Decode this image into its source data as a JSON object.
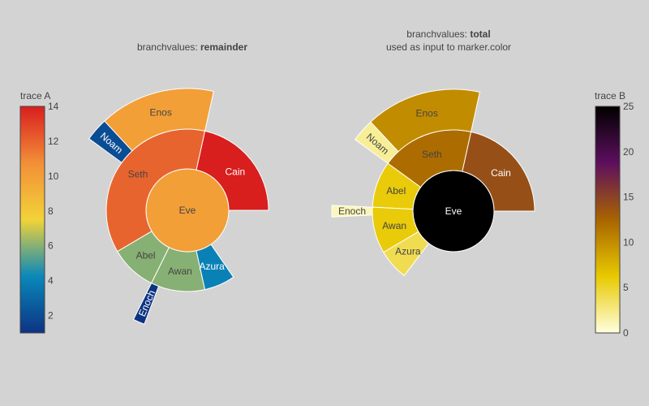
{
  "chart_data": [
    {
      "type": "sunburst",
      "trace_name": "trace A",
      "title_prefix": "branchvalues: ",
      "title_bold": "remainder",
      "subtitle": "",
      "branchvalues": "remainder",
      "colorscale": "Portland",
      "colorbar": {
        "title": "trace A",
        "ticks": [
          2,
          4,
          6,
          8,
          10,
          12,
          14
        ],
        "range": [
          1,
          14
        ],
        "position": "left"
      },
      "nodes": [
        {
          "label": "Eve",
          "parent": "",
          "value": 10,
          "color_value": 10
        },
        {
          "label": "Cain",
          "parent": "Eve",
          "value": 14,
          "color_value": 14
        },
        {
          "label": "Seth",
          "parent": "Eve",
          "value": 12,
          "color_value": 12
        },
        {
          "label": "Enos",
          "parent": "Seth",
          "value": 10,
          "color_value": 10
        },
        {
          "label": "Noam",
          "parent": "Seth",
          "value": 2,
          "color_value": 2
        },
        {
          "label": "Abel",
          "parent": "Eve",
          "value": 6,
          "color_value": 6
        },
        {
          "label": "Awan",
          "parent": "Eve",
          "value": 6,
          "color_value": 6
        },
        {
          "label": "Enoch",
          "parent": "Awan",
          "value": 1,
          "color_value": 1
        },
        {
          "label": "Azura",
          "parent": "Eve",
          "value": 4,
          "color_value": 4
        }
      ]
    },
    {
      "type": "sunburst",
      "trace_name": "trace B",
      "title_prefix": "branchvalues: ",
      "title_bold": "total",
      "subtitle": "used as input to marker.color",
      "branchvalues": "total",
      "colorscale": "Hot (reversed)",
      "colorbar": {
        "title": "trace B",
        "ticks": [
          0,
          5,
          10,
          15,
          20,
          25
        ],
        "range": [
          0,
          25
        ],
        "position": "right"
      },
      "nodes": [
        {
          "label": "Eve",
          "parent": "",
          "value": 65,
          "color_value": 65
        },
        {
          "label": "Cain",
          "parent": "Eve",
          "value": 14,
          "color_value": 14
        },
        {
          "label": "Seth",
          "parent": "Eve",
          "value": 12,
          "color_value": 12
        },
        {
          "label": "Enos",
          "parent": "Seth",
          "value": 10,
          "color_value": 10
        },
        {
          "label": "Noam",
          "parent": "Seth",
          "value": 2,
          "color_value": 2
        },
        {
          "label": "Abel",
          "parent": "Eve",
          "value": 6,
          "color_value": 6
        },
        {
          "label": "Awan",
          "parent": "Eve",
          "value": 6,
          "color_value": 6
        },
        {
          "label": "Enoch",
          "parent": "Awan",
          "value": 1,
          "color_value": 1
        },
        {
          "label": "Azura",
          "parent": "Eve",
          "value": 4,
          "color_value": 4
        }
      ]
    }
  ],
  "colors": {
    "background": "#d3d3d3",
    "segment_stroke": "#ffffff",
    "portland": [
      "#0c3383",
      "#0a88ba",
      "#f2d338",
      "#f28f38",
      "#d91e1e"
    ],
    "hot_reversed": [
      "#ffffe0",
      "#e8c900",
      "#a86400",
      "#5e0f5e",
      "#000000"
    ]
  }
}
